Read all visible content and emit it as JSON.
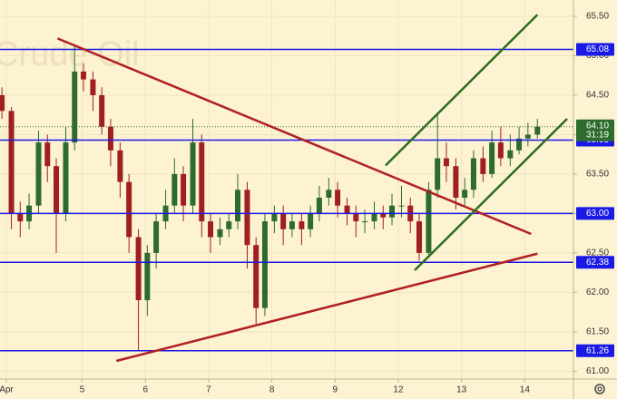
{
  "chart_data": {
    "type": "candlestick",
    "watermark": "t Crude Oil",
    "up_color": "#2e6b2e",
    "down_color": "#a0201e",
    "grid": true,
    "x": [
      -0.27,
      -0.12,
      0.02,
      0.16,
      0.31,
      0.45,
      0.59,
      0.74,
      0.88,
      1.02,
      1.17,
      1.31,
      1.45,
      1.6,
      1.74,
      1.89,
      2.03,
      2.17,
      2.32,
      2.46,
      2.6,
      2.75,
      2.89,
      3.03,
      3.18,
      3.32,
      3.46,
      3.61,
      3.75,
      3.89,
      4.04,
      4.18,
      4.32,
      4.47,
      4.61,
      4.75,
      4.9,
      5.04,
      5.19,
      5.33,
      5.47,
      5.62,
      5.76,
      5.9,
      6.05,
      6.19,
      6.33,
      6.48,
      6.62,
      6.76,
      6.91,
      7.05,
      7.19,
      7.34,
      7.48,
      7.62,
      7.77,
      7.91,
      8.05,
      8.2
    ],
    "open": [
      64.5,
      64.3,
      63.0,
      62.9,
      63.1,
      63.9,
      63.6,
      63.0,
      63.9,
      64.8,
      64.7,
      64.5,
      64.1,
      63.8,
      63.4,
      62.7,
      61.9,
      62.5,
      62.9,
      63.1,
      63.5,
      63.1,
      63.9,
      62.9,
      62.7,
      62.8,
      62.9,
      63.3,
      62.6,
      61.8,
      62.9,
      63.0,
      62.8,
      62.9,
      62.8,
      63.0,
      63.2,
      63.3,
      63.1,
      63.0,
      62.9,
      62.9,
      63.0,
      62.95,
      63.1,
      63.1,
      62.9,
      62.5,
      63.3,
      63.7,
      63.6,
      63.2,
      63.3,
      63.7,
      63.5,
      63.9,
      63.7,
      63.8,
      63.95,
      64.0
    ],
    "high": [
      64.6,
      64.35,
      63.15,
      63.25,
      64.05,
      64.0,
      63.7,
      64.1,
      65.12,
      64.9,
      64.8,
      64.6,
      64.2,
      63.9,
      63.5,
      62.8,
      62.6,
      63.0,
      63.3,
      63.7,
      63.6,
      64.2,
      64.0,
      63.0,
      62.95,
      63.0,
      63.5,
      63.4,
      62.7,
      63.0,
      63.1,
      63.1,
      63.0,
      63.0,
      63.1,
      63.35,
      63.45,
      63.4,
      63.2,
      63.1,
      63.05,
      63.15,
      63.1,
      63.25,
      63.35,
      63.2,
      63.0,
      63.4,
      64.25,
      63.9,
      63.7,
      63.45,
      63.8,
      63.85,
      64.05,
      64.1,
      64.0,
      64.1,
      64.15,
      64.2
    ],
    "low": [
      64.2,
      62.8,
      62.7,
      62.8,
      63.0,
      63.4,
      62.5,
      62.9,
      63.8,
      64.55,
      64.3,
      64.0,
      63.6,
      63.2,
      62.5,
      61.26,
      61.7,
      62.3,
      62.8,
      63.0,
      62.9,
      63.0,
      62.7,
      62.5,
      62.6,
      62.7,
      62.8,
      62.3,
      61.6,
      61.7,
      62.75,
      62.6,
      62.7,
      62.6,
      62.7,
      62.9,
      63.1,
      62.95,
      62.85,
      62.7,
      62.75,
      62.8,
      62.8,
      62.85,
      62.95,
      62.75,
      62.4,
      62.45,
      63.2,
      63.4,
      63.05,
      63.1,
      63.2,
      63.4,
      63.45,
      63.6,
      63.6,
      63.75,
      63.85,
      63.95
    ],
    "close": [
      64.3,
      63.0,
      62.9,
      63.1,
      63.9,
      63.6,
      63.0,
      63.9,
      64.8,
      64.7,
      64.5,
      64.1,
      63.8,
      63.4,
      62.7,
      61.9,
      62.5,
      62.9,
      63.1,
      63.5,
      63.1,
      63.9,
      62.9,
      62.7,
      62.8,
      62.9,
      63.3,
      62.6,
      61.8,
      62.9,
      63.0,
      62.8,
      62.9,
      62.8,
      63.0,
      63.2,
      63.3,
      63.1,
      63.0,
      62.9,
      62.9,
      63.0,
      62.95,
      63.1,
      63.1,
      62.9,
      62.5,
      63.3,
      63.7,
      63.6,
      63.2,
      63.3,
      63.7,
      63.5,
      63.9,
      63.7,
      63.8,
      63.95,
      64.0,
      64.1
    ],
    "xlim": [
      -0.3,
      8.77
    ],
    "xticks": [
      {
        "value": -0.2,
        "label": "Apr"
      },
      {
        "value": 1,
        "label": "5"
      },
      {
        "value": 2,
        "label": "6"
      },
      {
        "value": 3,
        "label": "7"
      },
      {
        "value": 4,
        "label": "8"
      },
      {
        "value": 5,
        "label": "9"
      },
      {
        "value": 6,
        "label": "12"
      },
      {
        "value": 7,
        "label": "13"
      },
      {
        "value": 8,
        "label": "14"
      }
    ],
    "ylim": [
      60.9,
      65.707
    ],
    "yticks": [
      {
        "value": 61,
        "label": "61.00"
      },
      {
        "value": 61.5,
        "label": "61.50"
      },
      {
        "value": 62,
        "label": "62.00"
      },
      {
        "value": 62.5,
        "label": "62.50"
      },
      {
        "value": 63,
        "label": "63.00"
      },
      {
        "value": 63.5,
        "label": "63.50"
      },
      {
        "value": 64,
        "label": "64.00"
      },
      {
        "value": 64.5,
        "label": "64.50"
      },
      {
        "value": 65,
        "label": "65.00"
      },
      {
        "value": 65.5,
        "label": "65.50"
      }
    ],
    "levels": [
      {
        "value": 65.08,
        "label": "65.08",
        "color": "#1a1ae6"
      },
      {
        "value": 63.93,
        "label": "63.93",
        "color": "#1a1ae6"
      },
      {
        "value": 63,
        "label": "63.00",
        "color": "#1a1ae6"
      },
      {
        "value": 62.38,
        "label": "62.38",
        "color": "#1a1ae6"
      },
      {
        "value": 61.26,
        "label": "61.26",
        "color": "#1a1ae6"
      }
    ],
    "trendlines": [
      {
        "color": "#b02020",
        "x": [
          0.61,
          8.1
        ],
        "y": [
          65.22,
          62.74
        ]
      },
      {
        "color": "#b02020",
        "x": [
          1.54,
          8.2
        ],
        "y": [
          61.13,
          62.49
        ]
      },
      {
        "color": "#2a6e1e",
        "x": [
          5.8,
          8.2
        ],
        "y": [
          63.61,
          65.52
        ]
      },
      {
        "color": "#2a6e1e",
        "x": [
          6.26,
          8.67
        ],
        "y": [
          62.28,
          64.2
        ]
      }
    ],
    "last_price": {
      "value": 64.1,
      "label": "64.10",
      "countdown": "31:19",
      "color": "#2e6b2e"
    }
  }
}
